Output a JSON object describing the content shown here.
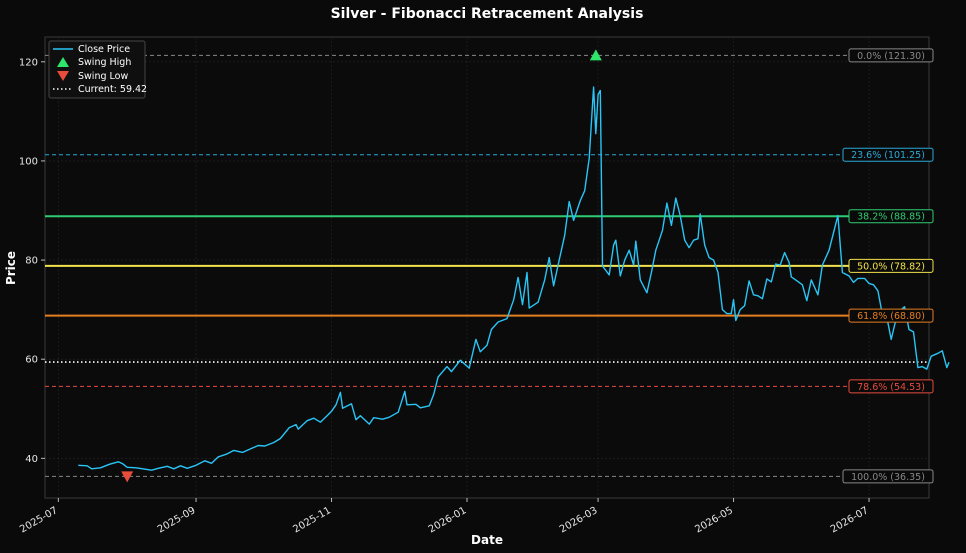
{
  "chart_data": {
    "type": "line",
    "title": "Silver - Fibonacci Retracement Analysis",
    "xlabel": "Date",
    "ylabel": "Price",
    "xlim": [
      "2025-06-25",
      "2026-07-28"
    ],
    "ylim": [
      32,
      125
    ],
    "x_ticks": [
      "2025-07",
      "2025-09",
      "2025-11",
      "2026-01",
      "2026-03",
      "2026-05",
      "2026-07"
    ],
    "y_ticks": [
      40,
      60,
      80,
      100,
      120
    ],
    "grid": true,
    "legend_position": "top-left",
    "series": [
      {
        "name": "Close Price",
        "color": "#29c5f6",
        "points": [
          [
            "2025-07-10",
            38.6
          ],
          [
            "2025-07-14",
            38.5
          ],
          [
            "2025-07-16",
            37.9
          ],
          [
            "2025-07-20",
            38.1
          ],
          [
            "2025-07-24",
            38.8
          ],
          [
            "2025-07-28",
            39.3
          ],
          [
            "2025-07-30",
            38.9
          ],
          [
            "2025-08-01",
            38.2
          ],
          [
            "2025-08-05",
            38.1
          ],
          [
            "2025-08-08",
            37.9
          ],
          [
            "2025-08-12",
            37.6
          ],
          [
            "2025-08-15",
            38.0
          ],
          [
            "2025-08-19",
            38.4
          ],
          [
            "2025-08-22",
            37.9
          ],
          [
            "2025-08-25",
            38.5
          ],
          [
            "2025-08-28",
            38.0
          ],
          [
            "2025-09-01",
            38.6
          ],
          [
            "2025-09-05",
            39.5
          ],
          [
            "2025-09-08",
            39.0
          ],
          [
            "2025-09-11",
            40.3
          ],
          [
            "2025-09-15",
            40.9
          ],
          [
            "2025-09-18",
            41.6
          ],
          [
            "2025-09-22",
            41.2
          ],
          [
            "2025-09-25",
            41.8
          ],
          [
            "2025-09-29",
            42.6
          ],
          [
            "2025-10-02",
            42.5
          ],
          [
            "2025-10-06",
            43.2
          ],
          [
            "2025-10-09",
            44.0
          ],
          [
            "2025-10-13",
            46.2
          ],
          [
            "2025-10-16",
            46.8
          ],
          [
            "2025-10-17",
            45.9
          ],
          [
            "2025-10-21",
            47.6
          ],
          [
            "2025-10-24",
            48.1
          ],
          [
            "2025-10-27",
            47.3
          ],
          [
            "2025-10-30",
            48.6
          ],
          [
            "2025-11-01",
            49.5
          ],
          [
            "2025-11-03",
            50.8
          ],
          [
            "2025-11-05",
            53.3
          ],
          [
            "2025-11-06",
            50.1
          ],
          [
            "2025-11-10",
            51.0
          ],
          [
            "2025-11-12",
            47.8
          ],
          [
            "2025-11-14",
            48.6
          ],
          [
            "2025-11-18",
            46.9
          ],
          [
            "2025-11-20",
            48.2
          ],
          [
            "2025-11-24",
            47.9
          ],
          [
            "2025-11-27",
            48.3
          ],
          [
            "2025-12-01",
            49.3
          ],
          [
            "2025-12-04",
            53.5
          ],
          [
            "2025-12-05",
            50.8
          ],
          [
            "2025-12-09",
            50.9
          ],
          [
            "2025-12-11",
            50.2
          ],
          [
            "2025-12-15",
            50.6
          ],
          [
            "2025-12-17",
            52.9
          ],
          [
            "2025-12-19",
            56.4
          ],
          [
            "2025-12-23",
            58.5
          ],
          [
            "2025-12-25",
            57.5
          ],
          [
            "2025-12-29",
            59.8
          ],
          [
            "2026-01-02",
            58.2
          ],
          [
            "2026-01-05",
            64.0
          ],
          [
            "2026-01-07",
            61.5
          ],
          [
            "2026-01-10",
            62.8
          ],
          [
            "2026-01-12",
            66.0
          ],
          [
            "2026-01-15",
            67.5
          ],
          [
            "2026-01-19",
            68.2
          ],
          [
            "2026-01-22",
            72.0
          ],
          [
            "2026-01-24",
            76.5
          ],
          [
            "2026-01-26",
            71.0
          ],
          [
            "2026-01-28",
            77.5
          ],
          [
            "2026-01-29",
            70.3
          ],
          [
            "2026-02-02",
            71.5
          ],
          [
            "2026-02-05",
            76.0
          ],
          [
            "2026-02-07",
            80.5
          ],
          [
            "2026-02-09",
            74.8
          ],
          [
            "2026-02-11",
            79.0
          ],
          [
            "2026-02-14",
            85.0
          ],
          [
            "2026-02-16",
            91.8
          ],
          [
            "2026-02-18",
            88.0
          ],
          [
            "2026-02-21",
            92.0
          ],
          [
            "2026-02-23",
            94.0
          ],
          [
            "2026-02-25",
            100.5
          ],
          [
            "2026-02-27",
            114.9
          ],
          [
            "2026-02-28",
            105.5
          ],
          [
            "2026-03-01",
            113.4
          ],
          [
            "2026-03-02",
            114.2
          ],
          [
            "2026-03-03",
            78.8
          ],
          [
            "2026-03-06",
            77.0
          ],
          [
            "2026-03-08",
            83.0
          ],
          [
            "2026-03-09",
            84.0
          ],
          [
            "2026-03-11",
            76.8
          ],
          [
            "2026-03-13",
            80.0
          ],
          [
            "2026-03-15",
            82.0
          ],
          [
            "2026-03-17",
            79.0
          ],
          [
            "2026-03-18",
            83.8
          ],
          [
            "2026-03-20",
            76.0
          ],
          [
            "2026-03-23",
            73.4
          ],
          [
            "2026-03-25",
            77.5
          ],
          [
            "2026-03-27",
            82.0
          ],
          [
            "2026-03-30",
            86.0
          ],
          [
            "2026-04-01",
            91.5
          ],
          [
            "2026-04-03",
            87.0
          ],
          [
            "2026-04-05",
            92.5
          ],
          [
            "2026-04-07",
            89.0
          ],
          [
            "2026-04-09",
            84.0
          ],
          [
            "2026-04-11",
            82.5
          ],
          [
            "2026-04-13",
            84.0
          ],
          [
            "2026-04-15",
            84.3
          ],
          [
            "2026-04-16",
            89.3
          ],
          [
            "2026-04-18",
            83.0
          ],
          [
            "2026-04-20",
            80.5
          ],
          [
            "2026-04-22",
            80.0
          ],
          [
            "2026-04-24",
            77.5
          ],
          [
            "2026-04-26",
            70.0
          ],
          [
            "2026-04-28",
            69.2
          ],
          [
            "2026-04-30",
            69.2
          ],
          [
            "2026-05-01",
            72.0
          ],
          [
            "2026-05-02",
            67.8
          ],
          [
            "2026-05-04",
            70.0
          ],
          [
            "2026-05-06",
            70.8
          ],
          [
            "2026-05-08",
            75.8
          ],
          [
            "2026-05-10",
            73.0
          ],
          [
            "2026-05-12",
            72.8
          ],
          [
            "2026-05-14",
            72.2
          ],
          [
            "2026-05-16",
            76.2
          ],
          [
            "2026-05-18",
            75.6
          ],
          [
            "2026-05-20",
            79.2
          ],
          [
            "2026-05-22",
            79.0
          ],
          [
            "2026-05-24",
            81.5
          ],
          [
            "2026-05-26",
            79.5
          ],
          [
            "2026-05-27",
            76.6
          ],
          [
            "2026-05-29",
            76.0
          ],
          [
            "2026-06-01",
            75.0
          ],
          [
            "2026-06-03",
            71.8
          ],
          [
            "2026-06-05",
            76.0
          ],
          [
            "2026-06-08",
            73.0
          ],
          [
            "2026-06-10",
            79.0
          ],
          [
            "2026-06-13",
            82.0
          ],
          [
            "2026-06-15",
            85.5
          ],
          [
            "2026-06-17",
            89.0
          ],
          [
            "2026-06-19",
            77.5
          ],
          [
            "2026-06-22",
            76.8
          ],
          [
            "2026-06-24",
            75.5
          ],
          [
            "2026-06-26",
            76.3
          ],
          [
            "2026-06-29",
            76.3
          ],
          [
            "2026-07-01",
            75.3
          ],
          [
            "2026-07-03",
            75.0
          ],
          [
            "2026-07-05",
            73.8
          ],
          [
            "2026-07-07",
            69.0
          ],
          [
            "2026-07-09",
            68.5
          ],
          [
            "2026-07-11",
            64.0
          ],
          [
            "2026-07-13",
            67.8
          ],
          [
            "2026-07-15",
            69.8
          ],
          [
            "2026-07-17",
            70.6
          ],
          [
            "2026-07-19",
            66.0
          ],
          [
            "2026-07-21",
            65.5
          ],
          [
            "2026-07-23",
            58.3
          ],
          [
            "2026-07-25",
            58.5
          ],
          [
            "2026-07-27",
            58.0
          ],
          [
            "2026-07-29",
            60.6
          ],
          [
            "2026-08-01",
            61.2
          ],
          [
            "2026-08-03",
            61.7
          ],
          [
            "2026-08-05",
            58.3
          ],
          [
            "2026-08-06",
            59.4
          ]
        ]
      }
    ],
    "swing_high": {
      "name": "Swing High",
      "x": "2026-02-28",
      "y": 121.3,
      "color": "#2ee66b"
    },
    "swing_low": {
      "name": "Swing Low",
      "x": "2025-08-01",
      "y": 36.35,
      "color": "#e74c3c"
    },
    "current": {
      "name": "Current: 59.42",
      "value": 59.42,
      "color": "#ffffff"
    },
    "fib_levels": [
      {
        "label": "0.0% (121.30)",
        "value": 121.3,
        "color": "#888888",
        "style": "dashed",
        "width": 1
      },
      {
        "label": "23.6% (101.25)",
        "value": 101.25,
        "color": "#29a8d8",
        "style": "dashed",
        "width": 1
      },
      {
        "label": "38.2% (88.85)",
        "value": 88.85,
        "color": "#2ecc71",
        "style": "solid",
        "width": 2
      },
      {
        "label": "50.0% (78.82)",
        "value": 78.82,
        "color": "#f1e34c",
        "style": "solid",
        "width": 2
      },
      {
        "label": "61.8% (68.80)",
        "value": 68.8,
        "color": "#e67e22",
        "style": "solid",
        "width": 2
      },
      {
        "label": "78.6% (54.53)",
        "value": 54.53,
        "color": "#e74c3c",
        "style": "dashed",
        "width": 1
      },
      {
        "label": "100.0% (36.35)",
        "value": 36.35,
        "color": "#888888",
        "style": "dashed",
        "width": 1
      }
    ]
  }
}
